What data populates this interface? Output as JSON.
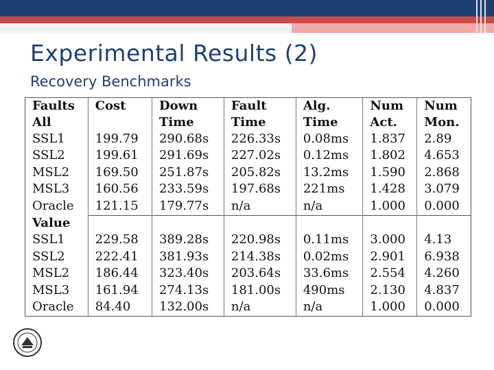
{
  "slide": {
    "title": "Experimental Results (2)",
    "subtitle": "Recovery Benchmarks"
  },
  "table": {
    "headers": [
      [
        "Faults",
        "All"
      ],
      [
        "Cost",
        ""
      ],
      [
        "Down",
        "Time"
      ],
      [
        "Fault",
        "Time"
      ],
      [
        "Alg.",
        "Time"
      ],
      [
        "Num",
        "Act."
      ],
      [
        "Num",
        "Mon."
      ]
    ],
    "section2_label": "Value",
    "faults_rows": [
      [
        "SSL1",
        "199.79",
        "290.68s",
        "226.33s",
        "0.08ms",
        "1.837",
        "2.89"
      ],
      [
        "SSL2",
        "199.61",
        "291.69s",
        "227.02s",
        "0.12ms",
        "1.802",
        "4.653"
      ],
      [
        "MSL2",
        "169.50",
        "251.87s",
        "205.82s",
        "13.2ms",
        "1.590",
        "2.868"
      ],
      [
        "MSL3",
        "160.56",
        "233.59s",
        "197.68s",
        "221ms",
        "1.428",
        "3.079"
      ],
      [
        "Oracle",
        "121.15",
        "179.77s",
        "n/a",
        "n/a",
        "1.000",
        "0.000"
      ]
    ],
    "value_rows": [
      [
        "SSL1",
        "229.58",
        "389.28s",
        "220.98s",
        "0.11ms",
        "3.000",
        "4.13"
      ],
      [
        "SSL2",
        "222.41",
        "381.93s",
        "214.38s",
        "0.02ms",
        "2.901",
        "6.938"
      ],
      [
        "MSL2",
        "186.44",
        "323.40s",
        "203.64s",
        "33.6ms",
        "2.554",
        "4.260"
      ],
      [
        "MSL3",
        "161.94",
        "274.13s",
        "181.00s",
        "490ms",
        "2.130",
        "4.837"
      ],
      [
        "Oracle",
        "84.40",
        "132.00s",
        "n/a",
        "n/a",
        "1.000",
        "0.000"
      ]
    ]
  },
  "colors": {
    "header_bar": "#1f3f72",
    "accent_strip": "#c94a4a",
    "title_text": "#1f3f72"
  },
  "icons": {
    "logo": "university-seal-icon"
  }
}
